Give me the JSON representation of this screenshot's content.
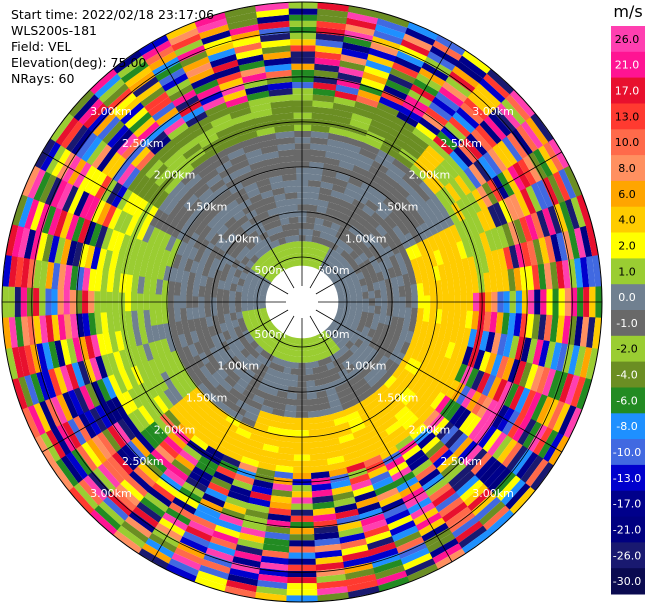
{
  "header": {
    "start_time": "Start time: 2022/02/18 23:17:06",
    "instrument": "WLS200s-181",
    "field": "Field: VEL",
    "elevation": "Elevation(deg): 75.00",
    "nrays": "NRays: 60"
  },
  "chart_data": {
    "type": "heatmap",
    "projection": "polar-ppi",
    "field": "VEL",
    "nrays": 60,
    "range_rings": [
      "500m",
      "1.00km",
      "1.50km",
      "2.00km",
      "2.50km",
      "3.00km"
    ],
    "range_ring_km": [
      0.5,
      1.0,
      1.5,
      2.0,
      2.5,
      3.0
    ],
    "max_range_km": 3.33,
    "colorbar": {
      "unit": "m/s",
      "ticks": [
        "26.0",
        "21.0",
        "17.0",
        "13.0",
        "10.0",
        "8.0",
        "6.0",
        "4.0",
        "2.0",
        "1.0",
        "0.0",
        "-1.0",
        "-2.0",
        "-4.0",
        "-6.0",
        "-8.0",
        "-10.0",
        "-13.0",
        "-17.0",
        "-21.0",
        "-26.0",
        "-30.0"
      ],
      "colors": [
        "#ff3fb0",
        "#ff1493",
        "#e8102e",
        "#ff3a30",
        "#ff6a4a",
        "#ff9060",
        "#ffa500",
        "#ffcc00",
        "#ffff00",
        "#9acd32",
        "#708090",
        "#696969",
        "#9acd32",
        "#6b8e23",
        "#228b22",
        "#1e90ff",
        "#4169e1",
        "#0000cd",
        "#00008b",
        "#000080",
        "#191970",
        "#0a0a50"
      ]
    }
  }
}
